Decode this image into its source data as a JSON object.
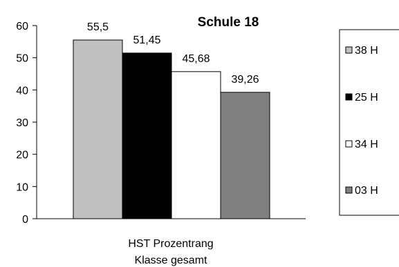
{
  "chart_data": {
    "type": "bar",
    "title": "Schule 18",
    "categories": [
      "HST Prozentrang",
      "Klasse gesamt"
    ],
    "ylim": [
      0,
      60
    ],
    "yticks": [
      0,
      10,
      20,
      30,
      40,
      50,
      60
    ],
    "grid": false,
    "legend_position": "right",
    "series": [
      {
        "name": "38 H",
        "value": 55.5,
        "label": "55,5",
        "color": "#c0c0c0"
      },
      {
        "name": "25 H",
        "value": 51.45,
        "label": "51,45",
        "color": "#000000"
      },
      {
        "name": "34 H",
        "value": 45.68,
        "label": "45,68",
        "color": "#ffffff"
      },
      {
        "name": "03 H",
        "value": 39.26,
        "label": "39,26",
        "color": "#808080"
      }
    ]
  }
}
